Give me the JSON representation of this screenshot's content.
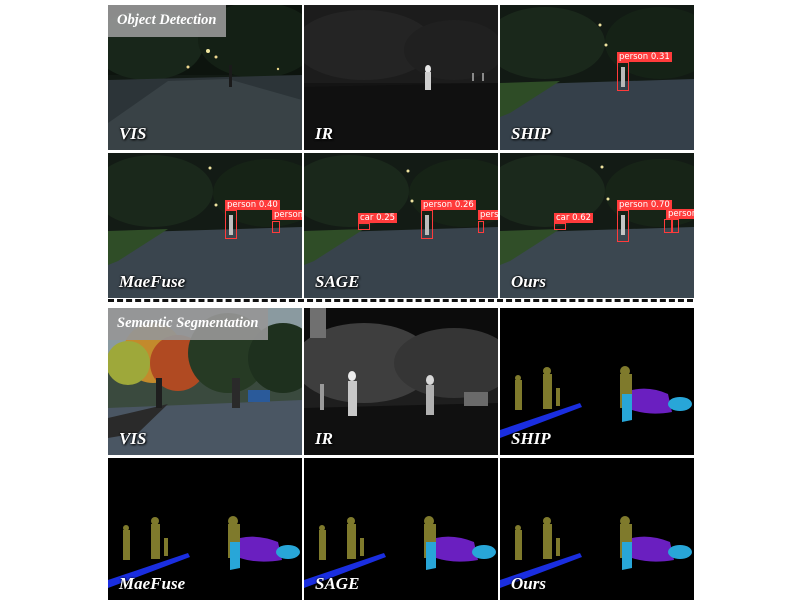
{
  "sections": {
    "detection": {
      "badge": "Object Detection"
    },
    "segmentation": {
      "badge": "Semantic Segmentation"
    }
  },
  "detection_labels": {
    "vis": "VIS",
    "ir": "IR",
    "ship": "SHIP",
    "maefuse": "MaeFuse",
    "sage": "SAGE",
    "ours": "Ours"
  },
  "segmentation_labels": {
    "vis": "VIS",
    "ir": "IR",
    "ship": "SHIP",
    "maefuse": "MaeFuse",
    "sage": "SAGE",
    "ours": "Ours"
  },
  "detections": {
    "ship": [
      {
        "tag": "person 0.31"
      }
    ],
    "maefuse": [
      {
        "tag": "person 0.40"
      },
      {
        "tag": "person"
      }
    ],
    "sage": [
      {
        "tag": "car 0.25"
      },
      {
        "tag": "person 0.26"
      },
      {
        "tag": "person"
      }
    ],
    "ours": [
      {
        "tag": "car 0.62"
      },
      {
        "tag": "person 0.70"
      },
      {
        "tag": "person"
      }
    ]
  },
  "colors": {
    "detection_box": "#ff3b3b",
    "seg_person": "#7f7a2c",
    "seg_car": "#6a1fc0",
    "seg_bike": "#28a6d8",
    "seg_road_line": "#1a2ee0"
  }
}
